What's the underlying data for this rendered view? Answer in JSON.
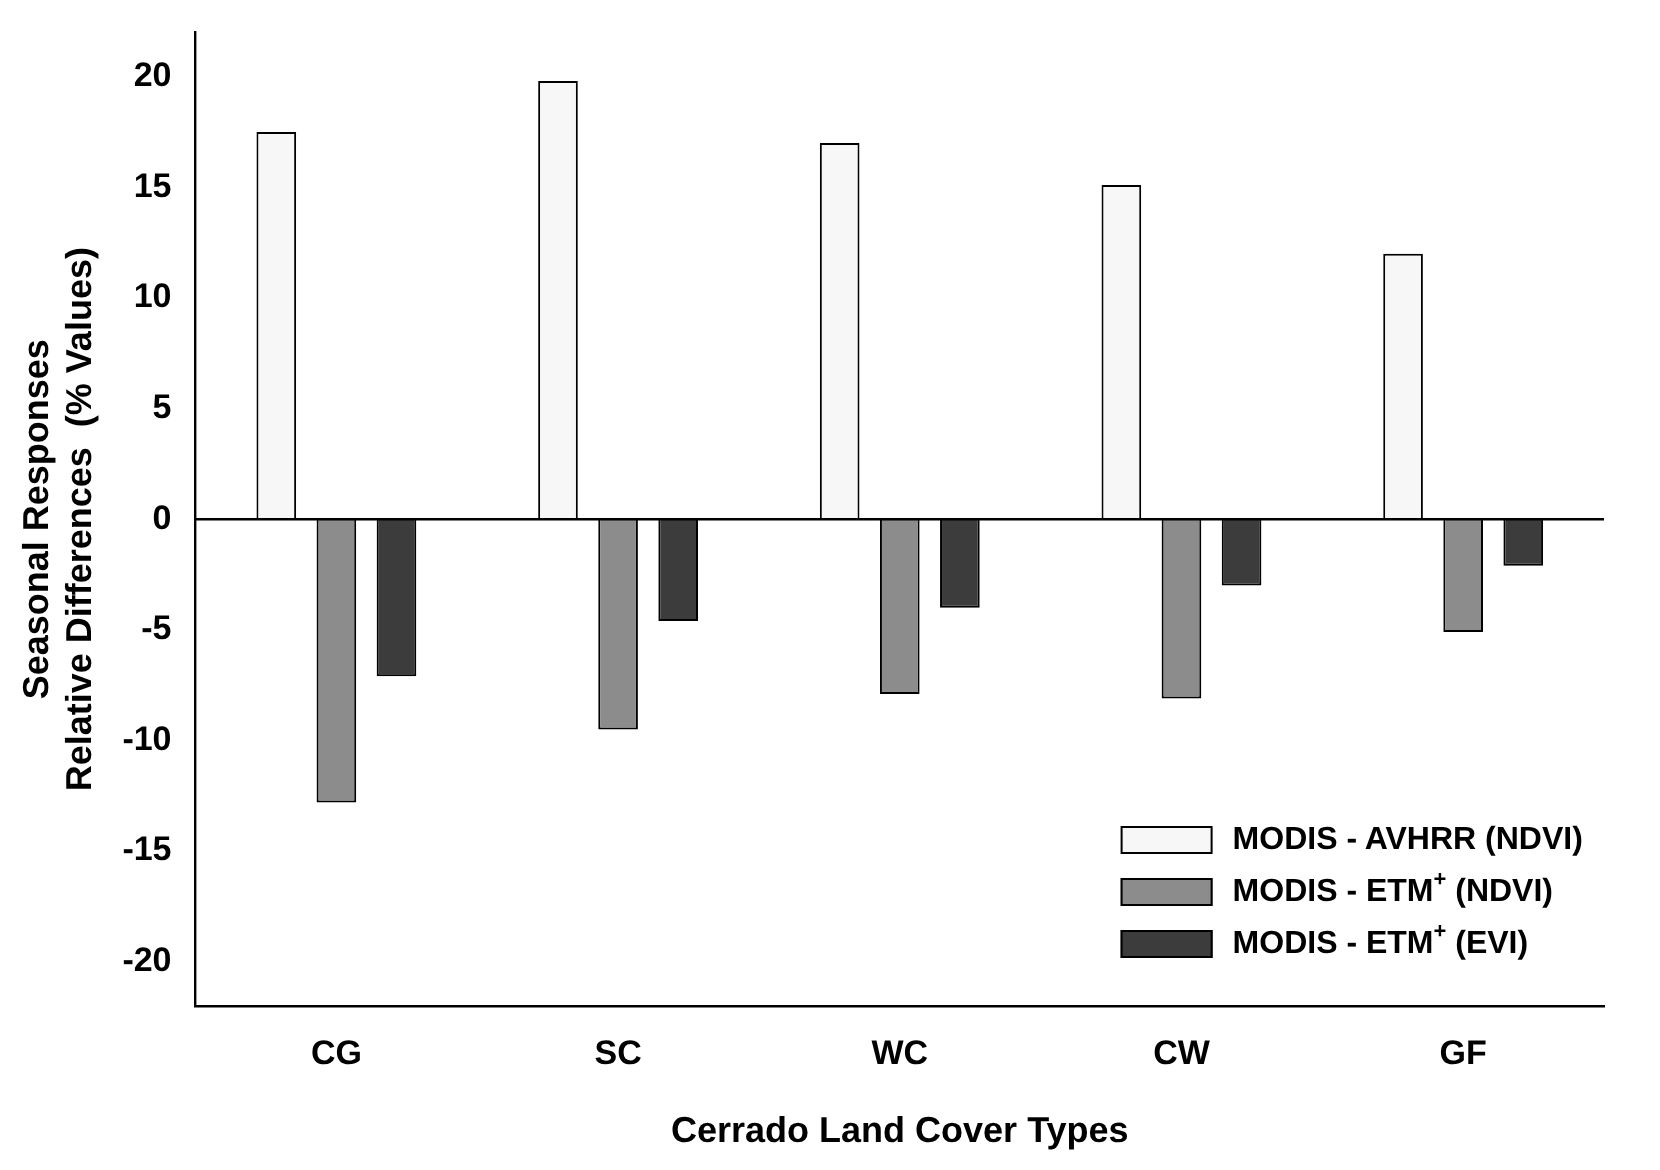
{
  "chart_data": {
    "type": "bar",
    "xlabel": "Cerrado Land Cover Types",
    "ylabel": "Seasonal Responses\nRelative Differences  (% Values)",
    "categories": [
      "CG",
      "SC",
      "WC",
      "CW",
      "GF"
    ],
    "series": [
      {
        "name": "MODIS - AVHRR (NDVI)",
        "color": "#f7f7f7",
        "values": [
          17.5,
          19.8,
          17.0,
          15.1,
          12.0
        ]
      },
      {
        "name": "MODIS - ETM$^{+}$ (NDVI)",
        "color": "#8c8c8c",
        "values": [
          -12.8,
          -9.5,
          -7.9,
          -8.1,
          -5.1
        ]
      },
      {
        "name": "MODIS - ETM$^{+}$ (EVI)",
        "color": "#3c3c3c",
        "values": [
          -7.1,
          -4.6,
          -4.0,
          -3.0,
          -2.1
        ]
      }
    ],
    "ylim": [
      -22,
      22
    ],
    "yticks": [
      -20,
      -15,
      -10,
      -5,
      0,
      5,
      10,
      15,
      20
    ],
    "ref_lines": [
      {
        "axis": "y",
        "value": 0,
        "color": "#000000"
      }
    ],
    "grid": false,
    "legend": "bottom right"
  }
}
